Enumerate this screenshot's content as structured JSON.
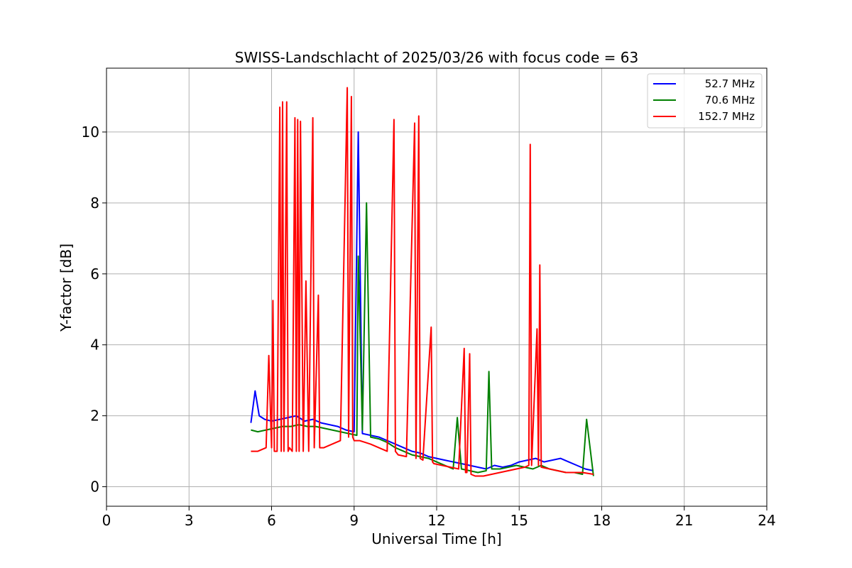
{
  "chart_data": {
    "type": "line",
    "title": "SWISS-Landschlacht of 2025/03/26 with focus code = 63",
    "xlabel": "Universal Time [h]",
    "ylabel": "Y-factor [dB]",
    "xlim": [
      0,
      24
    ],
    "ylim": [
      -0.55,
      11.8
    ],
    "xticks": [
      0,
      3,
      6,
      9,
      12,
      15,
      18,
      21,
      24
    ],
    "yticks": [
      0,
      2,
      4,
      6,
      8,
      10
    ],
    "grid": true,
    "legend_position": "top-right",
    "series": [
      {
        "name": "52.7 MHz",
        "color": "#0000ff",
        "x": [
          5.25,
          5.4,
          5.55,
          5.75,
          6.0,
          6.3,
          6.6,
          6.9,
          7.2,
          7.5,
          7.8,
          8.1,
          8.4,
          8.7,
          9.0,
          9.15,
          9.3,
          9.6,
          9.9,
          10.2,
          10.5,
          10.8,
          11.1,
          11.4,
          11.7,
          12.0,
          12.3,
          12.6,
          12.9,
          13.2,
          13.5,
          13.8,
          14.1,
          14.4,
          14.7,
          15.0,
          15.3,
          15.6,
          15.9,
          16.2,
          16.5,
          16.8,
          17.1,
          17.4,
          17.7
        ],
        "y": [
          1.8,
          2.7,
          2.0,
          1.9,
          1.85,
          1.9,
          1.95,
          2.0,
          1.85,
          1.9,
          1.8,
          1.75,
          1.7,
          1.6,
          1.55,
          10.0,
          1.5,
          1.45,
          1.4,
          1.3,
          1.2,
          1.1,
          1.0,
          0.95,
          0.85,
          0.8,
          0.75,
          0.7,
          0.65,
          0.6,
          0.55,
          0.5,
          0.6,
          0.55,
          0.6,
          0.7,
          0.75,
          0.8,
          0.7,
          0.75,
          0.8,
          0.7,
          0.6,
          0.5,
          0.45
        ]
      },
      {
        "name": "70.6 MHz",
        "color": "#008000",
        "x": [
          5.25,
          5.5,
          5.8,
          6.1,
          6.4,
          6.7,
          7.0,
          7.3,
          7.6,
          7.9,
          8.2,
          8.5,
          8.8,
          9.1,
          9.15,
          9.3,
          9.45,
          9.6,
          9.9,
          10.2,
          10.5,
          10.8,
          11.1,
          11.4,
          11.7,
          12.0,
          12.3,
          12.6,
          12.75,
          12.9,
          13.2,
          13.5,
          13.8,
          13.9,
          14.0,
          14.3,
          14.6,
          14.9,
          15.2,
          15.5,
          15.8,
          16.1,
          16.4,
          16.7,
          17.0,
          17.3,
          17.45,
          17.7
        ],
        "y": [
          1.6,
          1.55,
          1.6,
          1.65,
          1.7,
          1.7,
          1.75,
          1.7,
          1.7,
          1.65,
          1.6,
          1.55,
          1.5,
          1.45,
          6.5,
          1.6,
          8.0,
          1.4,
          1.35,
          1.25,
          1.1,
          1.0,
          0.9,
          0.85,
          0.8,
          0.7,
          0.6,
          0.5,
          1.95,
          0.5,
          0.45,
          0.4,
          0.45,
          3.25,
          0.5,
          0.5,
          0.55,
          0.6,
          0.55,
          0.5,
          0.6,
          0.5,
          0.45,
          0.4,
          0.4,
          0.35,
          1.9,
          0.3
        ]
      },
      {
        "name": "152.7 MHz",
        "color": "#ff0000",
        "x": [
          5.25,
          5.5,
          5.8,
          5.9,
          6.0,
          6.05,
          6.1,
          6.2,
          6.3,
          6.35,
          6.4,
          6.45,
          6.55,
          6.6,
          6.65,
          6.75,
          6.85,
          6.9,
          6.95,
          7.0,
          7.05,
          7.15,
          7.25,
          7.35,
          7.5,
          7.55,
          7.7,
          7.75,
          7.9,
          8.2,
          8.5,
          8.75,
          8.8,
          8.9,
          8.95,
          9.0,
          9.2,
          9.4,
          9.6,
          9.9,
          10.2,
          10.45,
          10.5,
          10.6,
          10.9,
          11.2,
          11.25,
          11.35,
          11.4,
          11.5,
          11.8,
          11.85,
          11.9,
          12.2,
          12.5,
          12.8,
          13.0,
          13.05,
          13.1,
          13.2,
          13.25,
          13.4,
          13.7,
          14.0,
          14.3,
          14.6,
          14.9,
          15.2,
          15.35,
          15.4,
          15.45,
          15.65,
          15.7,
          15.75,
          15.8,
          16.1,
          16.4,
          16.7,
          17.0,
          17.3,
          17.7
        ],
        "y": [
          1.0,
          1.0,
          1.1,
          3.7,
          1.1,
          5.25,
          1.0,
          1.0,
          10.7,
          1.0,
          10.85,
          1.0,
          10.85,
          1.0,
          1.1,
          1.0,
          10.4,
          1.0,
          10.35,
          1.0,
          10.3,
          1.0,
          5.8,
          1.0,
          10.4,
          1.1,
          5.4,
          1.1,
          1.1,
          1.2,
          1.3,
          11.25,
          1.4,
          11.0,
          1.4,
          1.3,
          1.3,
          1.25,
          1.2,
          1.1,
          1.0,
          10.35,
          1.0,
          0.9,
          0.85,
          10.25,
          0.8,
          10.45,
          0.8,
          0.75,
          4.5,
          0.7,
          0.65,
          0.6,
          0.55,
          0.5,
          3.9,
          0.4,
          0.4,
          3.75,
          0.35,
          0.3,
          0.3,
          0.35,
          0.4,
          0.45,
          0.5,
          0.55,
          0.6,
          9.65,
          0.6,
          4.45,
          0.6,
          6.25,
          0.55,
          0.5,
          0.45,
          0.4,
          0.4,
          0.4,
          0.35
        ]
      }
    ]
  }
}
